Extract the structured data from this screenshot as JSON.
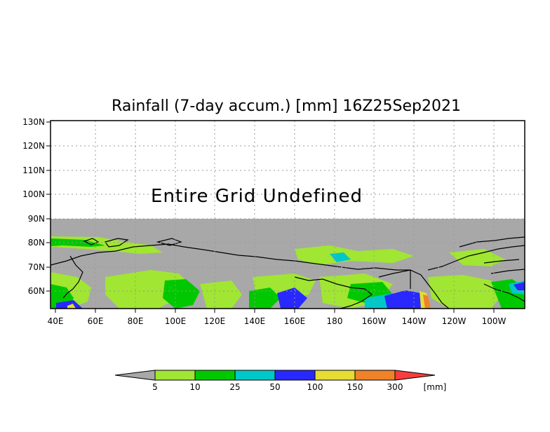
{
  "title": "Rainfall (7-day accum.) [mm] 16Z25Sep2021",
  "message": "Entire Grid Undefined",
  "y_ticks": [
    "130N",
    "120N",
    "110N",
    "100N",
    "90N",
    "80N",
    "70N",
    "60N"
  ],
  "x_ticks": [
    "40E",
    "60E",
    "80E",
    "100E",
    "120E",
    "140E",
    "160E",
    "180",
    "160W",
    "140W",
    "120W",
    "100W"
  ],
  "colorbar": {
    "labels": [
      "5",
      "10",
      "25",
      "50",
      "100",
      "150",
      "300"
    ],
    "unit": "[mm]",
    "colors": [
      "#a8a8a8",
      "#a0e632",
      "#00c800",
      "#00c8c8",
      "#2828ff",
      "#e6dc32",
      "#f08228",
      "#fa3c3c"
    ]
  },
  "colors": {
    "undefined_gray": "#a8a8a8",
    "light_green": "#a0e632",
    "green": "#00c800",
    "cyan": "#00c8c8",
    "blue": "#2828ff",
    "yellow": "#e6dc32",
    "orange": "#f08228",
    "red": "#fa3c3c"
  }
}
